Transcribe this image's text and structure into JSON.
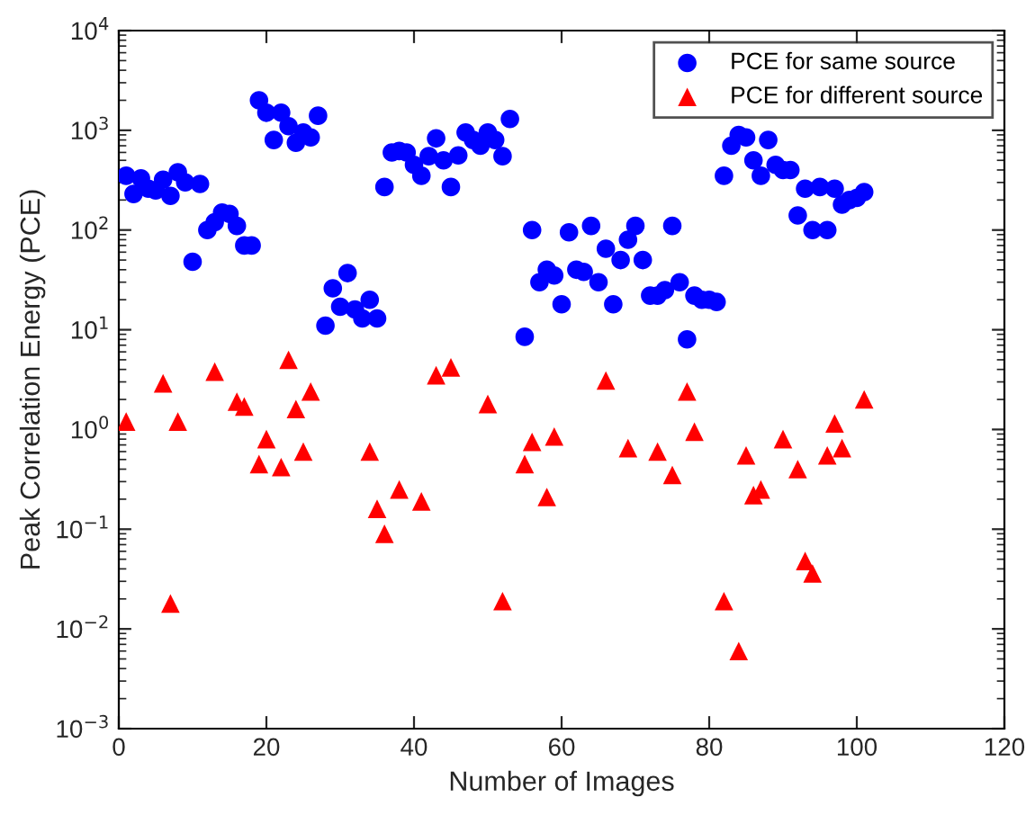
{
  "chart_data": {
    "type": "scatter",
    "xlabel": "Number of Images",
    "ylabel": "Peak Correlation Energy (PCE)",
    "log": "y",
    "xlim": [
      0,
      120
    ],
    "xticks": [
      0,
      20,
      40,
      60,
      80,
      100,
      120
    ],
    "ylim": [
      0.001,
      10000
    ],
    "yticks": [
      {
        "value": 0.001,
        "label": "10$^{−3}$"
      },
      {
        "value": 0.01,
        "label": "10$^{−2}$"
      },
      {
        "value": 0.1,
        "label": "10$^{−1}$"
      },
      {
        "value": 1,
        "label": "10$^{0}$"
      },
      {
        "value": 10,
        "label": "10$^{1}$"
      },
      {
        "value": 100,
        "label": "10$^{2}$"
      },
      {
        "value": 1000,
        "label": "10$^{3}$"
      },
      {
        "value": 10000,
        "label": "10$^{4}$"
      }
    ],
    "legend": "top right",
    "grid": false,
    "series": [
      {
        "name": "PCE for same source",
        "color": "#0000ff",
        "marker": "circle",
        "x": [
          1,
          2,
          3,
          4,
          5,
          6,
          7,
          8,
          9,
          10,
          11,
          12,
          13,
          14,
          15,
          16,
          17,
          18,
          19,
          20,
          21,
          22,
          23,
          24,
          25,
          26,
          27,
          28,
          29,
          30,
          31,
          32,
          33,
          34,
          35,
          36,
          37,
          38,
          39,
          40,
          41,
          42,
          43,
          44,
          45,
          46,
          47,
          48,
          49,
          50,
          51,
          52,
          53,
          55,
          56,
          57,
          58,
          59,
          60,
          61,
          62,
          63,
          64,
          65,
          66,
          67,
          68,
          69,
          70,
          71,
          72,
          73,
          74,
          75,
          76,
          77,
          78,
          79,
          80,
          81,
          82,
          83,
          84,
          85,
          86,
          87,
          88,
          89,
          90,
          91,
          92,
          93,
          94,
          95,
          96,
          97,
          98,
          99,
          100,
          101
        ],
        "values": [
          350,
          230,
          330,
          260,
          250,
          320,
          220,
          380,
          300,
          48,
          290,
          100,
          120,
          150,
          145,
          110,
          70,
          70,
          2000,
          1500,
          800,
          1500,
          1100,
          750,
          950,
          850,
          1400,
          11,
          26,
          17,
          37,
          16,
          13,
          20,
          13,
          270,
          600,
          620,
          600,
          450,
          350,
          550,
          830,
          500,
          270,
          560,
          950,
          800,
          700,
          950,
          800,
          550,
          1300,
          8.5,
          100,
          30,
          40,
          35,
          18,
          95,
          40,
          38,
          110,
          30,
          65,
          18,
          50,
          80,
          110,
          50,
          22,
          22,
          25,
          110,
          30,
          8,
          22,
          20,
          20,
          19,
          350,
          700,
          900,
          850,
          500,
          350,
          800,
          450,
          400,
          400,
          140,
          260,
          100,
          270,
          100,
          260,
          180,
          200,
          210,
          240
        ]
      },
      {
        "name": "PCE for different source",
        "color": "#ff0000",
        "marker": "triangle",
        "x": [
          1,
          6,
          7,
          8,
          13,
          16,
          17,
          19,
          20,
          22,
          23,
          24,
          25,
          26,
          34,
          35,
          36,
          38,
          41,
          43,
          45,
          50,
          52,
          55,
          56,
          58,
          59,
          66,
          69,
          73,
          75,
          77,
          78,
          82,
          84,
          85,
          86,
          87,
          90,
          92,
          93,
          94,
          96,
          97,
          98,
          101
        ],
        "values": [
          1.2,
          2.9,
          0.018,
          1.2,
          3.8,
          1.9,
          1.7,
          0.45,
          0.8,
          0.42,
          5,
          1.6,
          0.6,
          2.4,
          0.6,
          0.16,
          0.09,
          0.25,
          0.19,
          3.5,
          4.2,
          1.8,
          0.019,
          0.45,
          0.75,
          0.21,
          0.85,
          3.1,
          0.65,
          0.6,
          0.35,
          2.4,
          0.95,
          0.019,
          0.006,
          0.55,
          0.22,
          0.25,
          0.8,
          0.4,
          0.048,
          0.036,
          0.55,
          1.15,
          0.65,
          2.0
        ]
      }
    ]
  }
}
